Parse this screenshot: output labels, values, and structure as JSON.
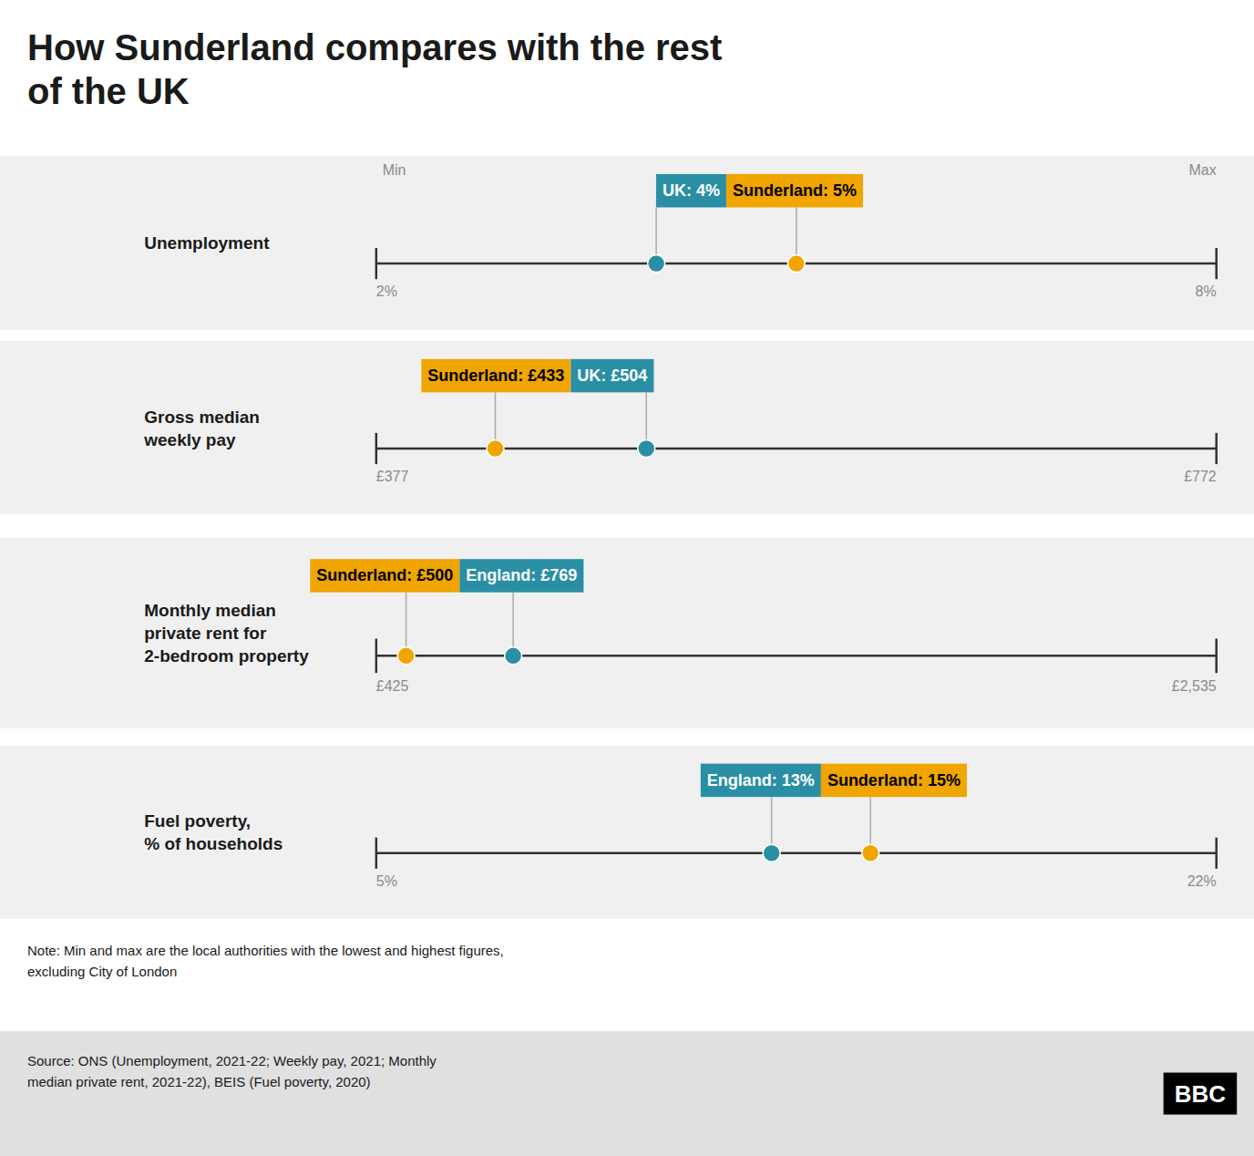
{
  "title": "How Sunderland compares with the rest\nof the UK",
  "annotations": [
    "Note: Min and max are the local authorities with the lowest and highest figures,\nexcluding City of London",
    "Source: ONS (Unemployment, 2021-22; Weekly pay, 2021; Monthly\nmedian private rent, 2021-22), BEIS (Fuel poverty, 2020)",
    "BBC"
  ],
  "chart_data": [
    {
      "type": "dot",
      "title": "Unemployment",
      "xlim": [
        2,
        8
      ],
      "xticks": [
        {
          "value": 2,
          "label": "2%"
        },
        {
          "value": 8,
          "label": "8%"
        }
      ],
      "annotations": [
        "Min",
        "Max"
      ],
      "data_labels": true,
      "series": [
        {
          "color": "#2a8fa4",
          "values": [
            4
          ],
          "value_labels": [
            "UK: 4%"
          ]
        },
        {
          "color": "#f0a500",
          "values": [
            5
          ],
          "value_labels": [
            "Sunderland: 5%"
          ]
        }
      ]
    },
    {
      "type": "dot",
      "title": "Gross median\nweekly pay",
      "xlim": [
        377,
        772
      ],
      "xticks": [
        {
          "value": 377,
          "label": "£377"
        },
        {
          "value": 772,
          "label": "£772"
        }
      ],
      "data_labels": true,
      "series": [
        {
          "color": "#f0a500",
          "values": [
            433
          ],
          "value_labels": [
            "Sunderland: £433"
          ]
        },
        {
          "color": "#2a8fa4",
          "values": [
            504
          ],
          "value_labels": [
            "UK: £504"
          ]
        }
      ]
    },
    {
      "type": "dot",
      "title": "Monthly median\nprivate rent for\n2-bedroom property",
      "xlim": [
        425,
        2535
      ],
      "xticks": [
        {
          "value": 425,
          "label": "£425"
        },
        {
          "value": 2535,
          "label": "£2,535"
        }
      ],
      "data_labels": true,
      "series": [
        {
          "color": "#f0a500",
          "values": [
            500
          ],
          "value_labels": [
            "Sunderland: £500"
          ]
        },
        {
          "color": "#2a8fa4",
          "values": [
            769
          ],
          "value_labels": [
            "England: £769"
          ]
        }
      ]
    },
    {
      "type": "dot",
      "title": "Fuel poverty,\n% of households",
      "xlim": [
        5,
        22
      ],
      "xticks": [
        {
          "value": 5,
          "label": "5%"
        },
        {
          "value": 22,
          "label": "22%"
        }
      ],
      "data_labels": true,
      "series": [
        {
          "color": "#2a8fa4",
          "values": [
            13
          ],
          "value_labels": [
            "England: 13%"
          ]
        },
        {
          "color": "#f0a500",
          "values": [
            15
          ],
          "value_labels": [
            "Sunderland: 15%"
          ]
        }
      ]
    }
  ]
}
